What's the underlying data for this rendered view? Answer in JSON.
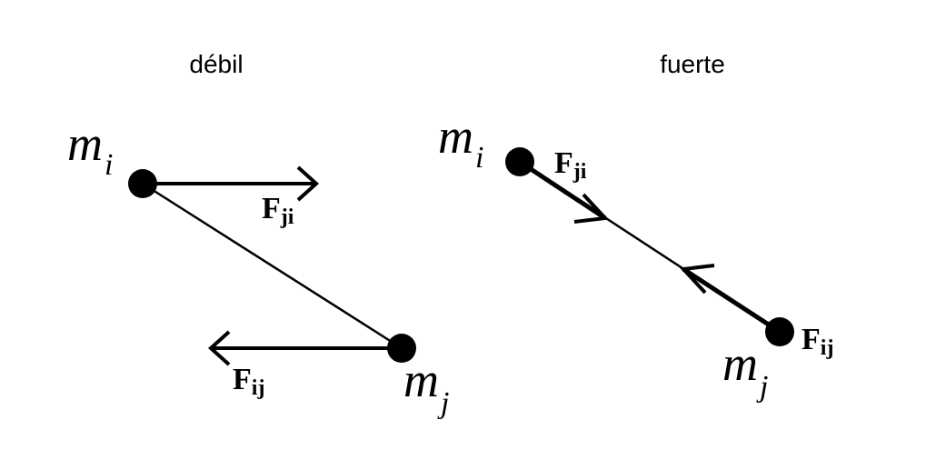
{
  "weak": {
    "title": "débil",
    "mass_i": {
      "symbol": "m",
      "subscript": "i"
    },
    "mass_j": {
      "symbol": "m",
      "subscript": "j"
    },
    "force_ji": {
      "symbol": "F",
      "subscript": "ji"
    },
    "force_ij": {
      "symbol": "F",
      "subscript": "ij"
    }
  },
  "strong": {
    "title": "fuerte",
    "mass_i": {
      "symbol": "m",
      "subscript": "i"
    },
    "mass_j": {
      "symbol": "m",
      "subscript": "j"
    },
    "force_ji": {
      "symbol": "F",
      "subscript": "ji"
    },
    "force_ij": {
      "symbol": "F",
      "subscript": "ij"
    }
  }
}
